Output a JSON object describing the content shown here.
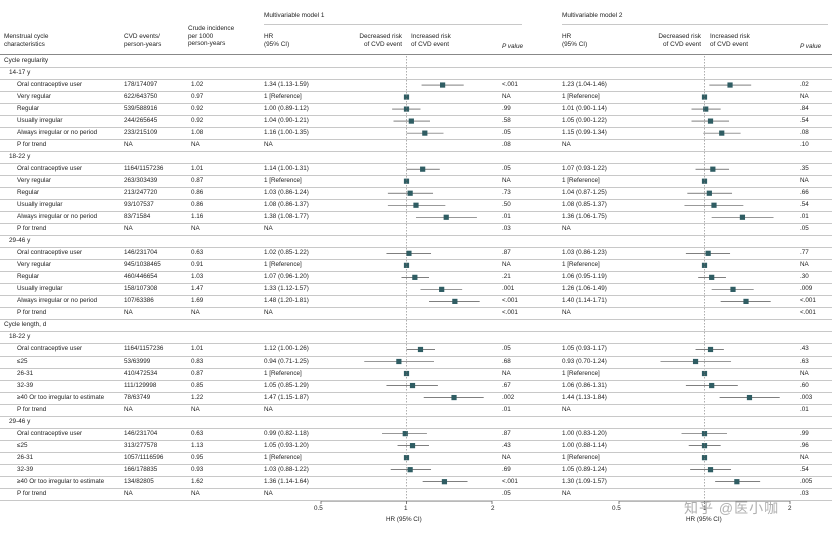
{
  "header": {
    "col_characteristics": [
      "Menstrual cycle",
      "characteristics"
    ],
    "col_events": [
      "CVD events/",
      "person-years"
    ],
    "col_crude": [
      "Crude incidence",
      "per 1000",
      "person-years"
    ],
    "model1_title": "Multivariable model 1",
    "model2_title": "Multivariable model 2",
    "hr_label": [
      "HR",
      "(95% CI)"
    ],
    "decreased_label": [
      "Decreased risk",
      "of CVD event"
    ],
    "increased_label": [
      "Increased risk",
      "of CVD event"
    ],
    "pvalue_label": "P value"
  },
  "axis": {
    "model1": {
      "ticks": [
        "0.5",
        "1",
        "2"
      ],
      "xlabel": "HR (95% CI)"
    },
    "model2": {
      "ticks": [
        "0.5",
        "1",
        "2"
      ],
      "xlabel": "HR (95% CI)"
    }
  },
  "watermark": "知乎 @医小咖",
  "chart_data": {
    "type": "forest",
    "x_scale": "log",
    "xlim": [
      0.5,
      2
    ],
    "reference_line": 1,
    "marker_color": "#2f5d63",
    "sections": [
      {
        "label": "Cycle regularity",
        "groups": [
          {
            "label": "14-17 y",
            "rows": [
              {
                "label": "Oral contraceptive user",
                "events": "178/174097",
                "crude": "1.02",
                "m1": {
                  "text": "1.34 (1.13-1.59)",
                  "hr": 1.34,
                  "lo": 1.13,
                  "hi": 1.59,
                  "p": "<.001"
                },
                "m2": {
                  "text": "1.23 (1.04-1.46)",
                  "hr": 1.23,
                  "lo": 1.04,
                  "hi": 1.46,
                  "p": ".02"
                }
              },
              {
                "label": "Very regular",
                "events": "622/643750",
                "crude": "0.97",
                "m1": {
                  "text": "1 [Reference]",
                  "hr": 1,
                  "p": "NA"
                },
                "m2": {
                  "text": "1 [Reference]",
                  "hr": 1,
                  "p": "NA"
                }
              },
              {
                "label": "Regular",
                "events": "539/588916",
                "crude": "0.92",
                "m1": {
                  "text": "1.00 (0.89-1.12)",
                  "hr": 1.0,
                  "lo": 0.89,
                  "hi": 1.12,
                  "p": ".99"
                },
                "m2": {
                  "text": "1.01 (0.90-1.14)",
                  "hr": 1.01,
                  "lo": 0.9,
                  "hi": 1.14,
                  "p": ".84"
                }
              },
              {
                "label": "Usually irregular",
                "events": "244/265645",
                "crude": "0.92",
                "m1": {
                  "text": "1.04 (0.90-1.21)",
                  "hr": 1.04,
                  "lo": 0.9,
                  "hi": 1.21,
                  "p": ".58"
                },
                "m2": {
                  "text": "1.05 (0.90-1.22)",
                  "hr": 1.05,
                  "lo": 0.9,
                  "hi": 1.22,
                  "p": ".54"
                }
              },
              {
                "label": "Always irregular or no period",
                "events": "233/215109",
                "crude": "1.08",
                "m1": {
                  "text": "1.16 (1.00-1.35)",
                  "hr": 1.16,
                  "lo": 1.0,
                  "hi": 1.35,
                  "p": ".05"
                },
                "m2": {
                  "text": "1.15 (0.99-1.34)",
                  "hr": 1.15,
                  "lo": 0.99,
                  "hi": 1.34,
                  "p": ".08"
                }
              },
              {
                "label": "P for trend",
                "events": "NA",
                "crude": "NA",
                "m1": {
                  "text": "NA",
                  "p": ".08"
                },
                "m2": {
                  "text": "NA",
                  "p": ".10"
                }
              }
            ]
          },
          {
            "label": "18-22 y",
            "rows": [
              {
                "label": "Oral contraceptive user",
                "events": "1164/1157236",
                "crude": "1.01",
                "m1": {
                  "text": "1.14 (1.00-1.31)",
                  "hr": 1.14,
                  "lo": 1.0,
                  "hi": 1.31,
                  "p": ".05"
                },
                "m2": {
                  "text": "1.07 (0.93-1.22)",
                  "hr": 1.07,
                  "lo": 0.93,
                  "hi": 1.22,
                  "p": ".35"
                }
              },
              {
                "label": "Very regular",
                "events": "263/303439",
                "crude": "0.87",
                "m1": {
                  "text": "1 [Reference]",
                  "hr": 1,
                  "p": "NA"
                },
                "m2": {
                  "text": "1 [Reference]",
                  "hr": 1,
                  "p": "NA"
                }
              },
              {
                "label": "Regular",
                "events": "213/247720",
                "crude": "0.86",
                "m1": {
                  "text": "1.03 (0.86-1.24)",
                  "hr": 1.03,
                  "lo": 0.86,
                  "hi": 1.24,
                  "p": ".73"
                },
                "m2": {
                  "text": "1.04 (0.87-1.25)",
                  "hr": 1.04,
                  "lo": 0.87,
                  "hi": 1.25,
                  "p": ".66"
                }
              },
              {
                "label": "Usually irregular",
                "events": "93/107537",
                "crude": "0.86",
                "m1": {
                  "text": "1.08 (0.86-1.37)",
                  "hr": 1.08,
                  "lo": 0.86,
                  "hi": 1.37,
                  "p": ".50"
                },
                "m2": {
                  "text": "1.08 (0.85-1.37)",
                  "hr": 1.08,
                  "lo": 0.85,
                  "hi": 1.37,
                  "p": ".54"
                }
              },
              {
                "label": "Always irregular or no period",
                "events": "83/71584",
                "crude": "1.16",
                "m1": {
                  "text": "1.38 (1.08-1.77)",
                  "hr": 1.38,
                  "lo": 1.08,
                  "hi": 1.77,
                  "p": ".01"
                },
                "m2": {
                  "text": "1.36 (1.06-1.75)",
                  "hr": 1.36,
                  "lo": 1.06,
                  "hi": 1.75,
                  "p": ".01"
                }
              },
              {
                "label": "P for trend",
                "events": "NA",
                "crude": "NA",
                "m1": {
                  "text": "NA",
                  "p": ".03"
                },
                "m2": {
                  "text": "NA",
                  "p": ".05"
                }
              }
            ]
          },
          {
            "label": "29-46 y",
            "rows": [
              {
                "label": "Oral contraceptive user",
                "events": "146/231704",
                "crude": "0.63",
                "m1": {
                  "text": "1.02 (0.85-1.22)",
                  "hr": 1.02,
                  "lo": 0.85,
                  "hi": 1.22,
                  "p": ".87"
                },
                "m2": {
                  "text": "1.03 (0.86-1.23)",
                  "hr": 1.03,
                  "lo": 0.86,
                  "hi": 1.23,
                  "p": ".77"
                }
              },
              {
                "label": "Very regular",
                "events": "945/1038465",
                "crude": "0.91",
                "m1": {
                  "text": "1 [Reference]",
                  "hr": 1,
                  "p": "NA"
                },
                "m2": {
                  "text": "1 [Reference]",
                  "hr": 1,
                  "p": "NA"
                }
              },
              {
                "label": "Regular",
                "events": "460/446654",
                "crude": "1.03",
                "m1": {
                  "text": "1.07 (0.96-1.20)",
                  "hr": 1.07,
                  "lo": 0.96,
                  "hi": 1.2,
                  "p": ".21"
                },
                "m2": {
                  "text": "1.06 (0.95-1.19)",
                  "hr": 1.06,
                  "lo": 0.95,
                  "hi": 1.19,
                  "p": ".30"
                }
              },
              {
                "label": "Usually irregular",
                "events": "158/107308",
                "crude": "1.47",
                "m1": {
                  "text": "1.33 (1.12-1.57)",
                  "hr": 1.33,
                  "lo": 1.12,
                  "hi": 1.57,
                  "p": ".001"
                },
                "m2": {
                  "text": "1.26 (1.06-1.49)",
                  "hr": 1.26,
                  "lo": 1.06,
                  "hi": 1.49,
                  "p": ".009"
                }
              },
              {
                "label": "Always irregular or no period",
                "events": "107/63386",
                "crude": "1.69",
                "m1": {
                  "text": "1.48 (1.20-1.81)",
                  "hr": 1.48,
                  "lo": 1.2,
                  "hi": 1.81,
                  "p": "<.001"
                },
                "m2": {
                  "text": "1.40 (1.14-1.71)",
                  "hr": 1.4,
                  "lo": 1.14,
                  "hi": 1.71,
                  "p": "<.001"
                }
              },
              {
                "label": "P for trend",
                "events": "NA",
                "crude": "NA",
                "m1": {
                  "text": "NA",
                  "p": "<.001"
                },
                "m2": {
                  "text": "NA",
                  "p": "<.001"
                }
              }
            ]
          }
        ]
      },
      {
        "label": "Cycle length, d",
        "groups": [
          {
            "label": "18-22 y",
            "rows": [
              {
                "label": "Oral contraceptive user",
                "events": "1164/1157236",
                "crude": "1.01",
                "m1": {
                  "text": "1.12 (1.00-1.26)",
                  "hr": 1.12,
                  "lo": 1.0,
                  "hi": 1.26,
                  "p": ".05"
                },
                "m2": {
                  "text": "1.05 (0.93-1.17)",
                  "hr": 1.05,
                  "lo": 0.93,
                  "hi": 1.17,
                  "p": ".43"
                }
              },
              {
                "label": "≤25",
                "events": "53/63999",
                "crude": "0.83",
                "m1": {
                  "text": "0.94 (0.71-1.25)",
                  "hr": 0.94,
                  "lo": 0.71,
                  "hi": 1.25,
                  "p": ".68"
                },
                "m2": {
                  "text": "0.93 (0.70-1.24)",
                  "hr": 0.93,
                  "lo": 0.7,
                  "hi": 1.24,
                  "p": ".63"
                }
              },
              {
                "label": "26-31",
                "events": "410/472534",
                "crude": "0.87",
                "m1": {
                  "text": "1 [Reference]",
                  "hr": 1,
                  "p": "NA"
                },
                "m2": {
                  "text": "1 [Reference]",
                  "hr": 1,
                  "p": "NA"
                }
              },
              {
                "label": "32-39",
                "events": "111/129998",
                "crude": "0.85",
                "m1": {
                  "text": "1.05 (0.85-1.29)",
                  "hr": 1.05,
                  "lo": 0.85,
                  "hi": 1.29,
                  "p": ".67"
                },
                "m2": {
                  "text": "1.06 (0.86-1.31)",
                  "hr": 1.06,
                  "lo": 0.86,
                  "hi": 1.31,
                  "p": ".60"
                }
              },
              {
                "label": "≥40 Or too irregular to estimate",
                "events": "78/63749",
                "crude": "1.22",
                "m1": {
                  "text": "1.47 (1.15-1.87)",
                  "hr": 1.47,
                  "lo": 1.15,
                  "hi": 1.87,
                  "p": ".002"
                },
                "m2": {
                  "text": "1.44 (1.13-1.84)",
                  "hr": 1.44,
                  "lo": 1.13,
                  "hi": 1.84,
                  "p": ".003"
                }
              },
              {
                "label": "P for trend",
                "events": "NA",
                "crude": "NA",
                "m1": {
                  "text": "NA",
                  "p": ".01"
                },
                "m2": {
                  "text": "NA",
                  "p": ".01"
                }
              }
            ]
          },
          {
            "label": "29-46 y",
            "rows": [
              {
                "label": "Oral contraceptive user",
                "events": "146/231704",
                "crude": "0.63",
                "m1": {
                  "text": "0.99 (0.82-1.18)",
                  "hr": 0.99,
                  "lo": 0.82,
                  "hi": 1.18,
                  "p": ".87"
                },
                "m2": {
                  "text": "1.00 (0.83-1.20)",
                  "hr": 1.0,
                  "lo": 0.83,
                  "hi": 1.2,
                  "p": ".99"
                }
              },
              {
                "label": "≤25",
                "events": "313/277578",
                "crude": "1.13",
                "m1": {
                  "text": "1.05 (0.93-1.20)",
                  "hr": 1.05,
                  "lo": 0.93,
                  "hi": 1.2,
                  "p": ".43"
                },
                "m2": {
                  "text": "1.00 (0.88-1.14)",
                  "hr": 1.0,
                  "lo": 0.88,
                  "hi": 1.14,
                  "p": ".96"
                }
              },
              {
                "label": "26-31",
                "events": "1057/1116596",
                "crude": "0.95",
                "m1": {
                  "text": "1 [Reference]",
                  "hr": 1,
                  "p": "NA"
                },
                "m2": {
                  "text": "1 [Reference]",
                  "hr": 1,
                  "p": "NA"
                }
              },
              {
                "label": "32-39",
                "events": "166/178835",
                "crude": "0.93",
                "m1": {
                  "text": "1.03 (0.88-1.22)",
                  "hr": 1.03,
                  "lo": 0.88,
                  "hi": 1.22,
                  "p": ".69"
                },
                "m2": {
                  "text": "1.05 (0.89-1.24)",
                  "hr": 1.05,
                  "lo": 0.89,
                  "hi": 1.24,
                  "p": ".54"
                }
              },
              {
                "label": "≥40 Or too irregular to estimate",
                "events": "134/82805",
                "crude": "1.62",
                "m1": {
                  "text": "1.36 (1.14-1.64)",
                  "hr": 1.36,
                  "lo": 1.14,
                  "hi": 1.64,
                  "p": "<.001"
                },
                "m2": {
                  "text": "1.30 (1.09-1.57)",
                  "hr": 1.3,
                  "lo": 1.09,
                  "hi": 1.57,
                  "p": ".005"
                }
              },
              {
                "label": "P for trend",
                "events": "NA",
                "crude": "NA",
                "m1": {
                  "text": "NA",
                  "p": ".05"
                },
                "m2": {
                  "text": "NA",
                  "p": ".03"
                }
              }
            ]
          }
        ]
      }
    ]
  }
}
